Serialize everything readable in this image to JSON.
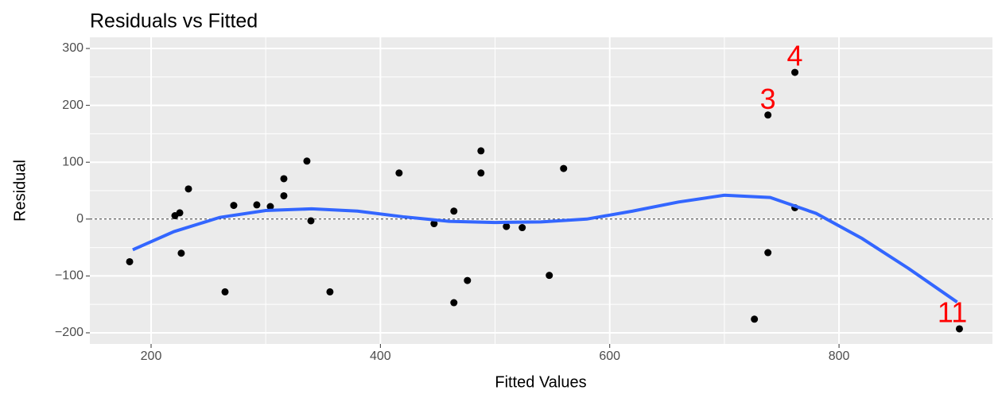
{
  "chart_data": {
    "type": "scatter",
    "title": "Residuals vs Fitted",
    "xlabel": "Fitted Values",
    "ylabel": "Residual",
    "x": [
      181.3,
      220.8,
      225,
      226.3,
      232.6,
      264.5,
      272.1,
      292.2,
      304,
      315.8,
      315.8,
      335.9,
      339.4,
      356,
      416.3,
      446.8,
      464.1,
      464.1,
      475.9,
      487.7,
      487.7,
      509.9,
      523.7,
      547.3,
      559.8,
      726.2,
      738,
      738,
      761.5,
      761.5,
      905
    ],
    "y": [
      -75,
      6,
      11,
      -60,
      53,
      -128,
      24,
      25,
      22,
      71,
      41,
      102,
      -3,
      -128,
      81,
      -8,
      14,
      -147,
      -108,
      120,
      81,
      -13,
      -15,
      -99,
      89,
      -176,
      183,
      -59,
      258,
      20,
      -193
    ],
    "color": "#000000",
    "smooth": {
      "x": [
        184,
        220,
        260,
        300,
        340,
        380,
        420,
        460,
        500,
        540,
        580,
        620,
        660,
        700,
        740,
        780,
        820,
        860,
        903
      ],
      "y": [
        -54,
        -22,
        3,
        15,
        18,
        14,
        4,
        -4,
        -6,
        -5,
        0,
        14,
        30,
        42,
        38,
        10,
        -34,
        -86,
        -146
      ],
      "color": "#3366ff"
    },
    "hline": 0,
    "annotations": [
      {
        "text": "4",
        "x": 761.5,
        "y": 283,
        "color": "#ff0000"
      },
      {
        "text": "3",
        "x": 738,
        "y": 207,
        "color": "#ff0000"
      },
      {
        "text": "11",
        "x": 898.8,
        "y": -168,
        "color": "#ff0000"
      }
    ],
    "xlim": [
      146.6,
      933.8
    ],
    "ylim": [
      -219.6,
      319.6
    ],
    "xticks": [
      200,
      400,
      600,
      800
    ],
    "yticks": [
      {
        "value": -200,
        "label": "−200"
      },
      {
        "value": -100,
        "label": "−100"
      },
      0,
      100,
      200,
      300
    ],
    "grid": true
  }
}
